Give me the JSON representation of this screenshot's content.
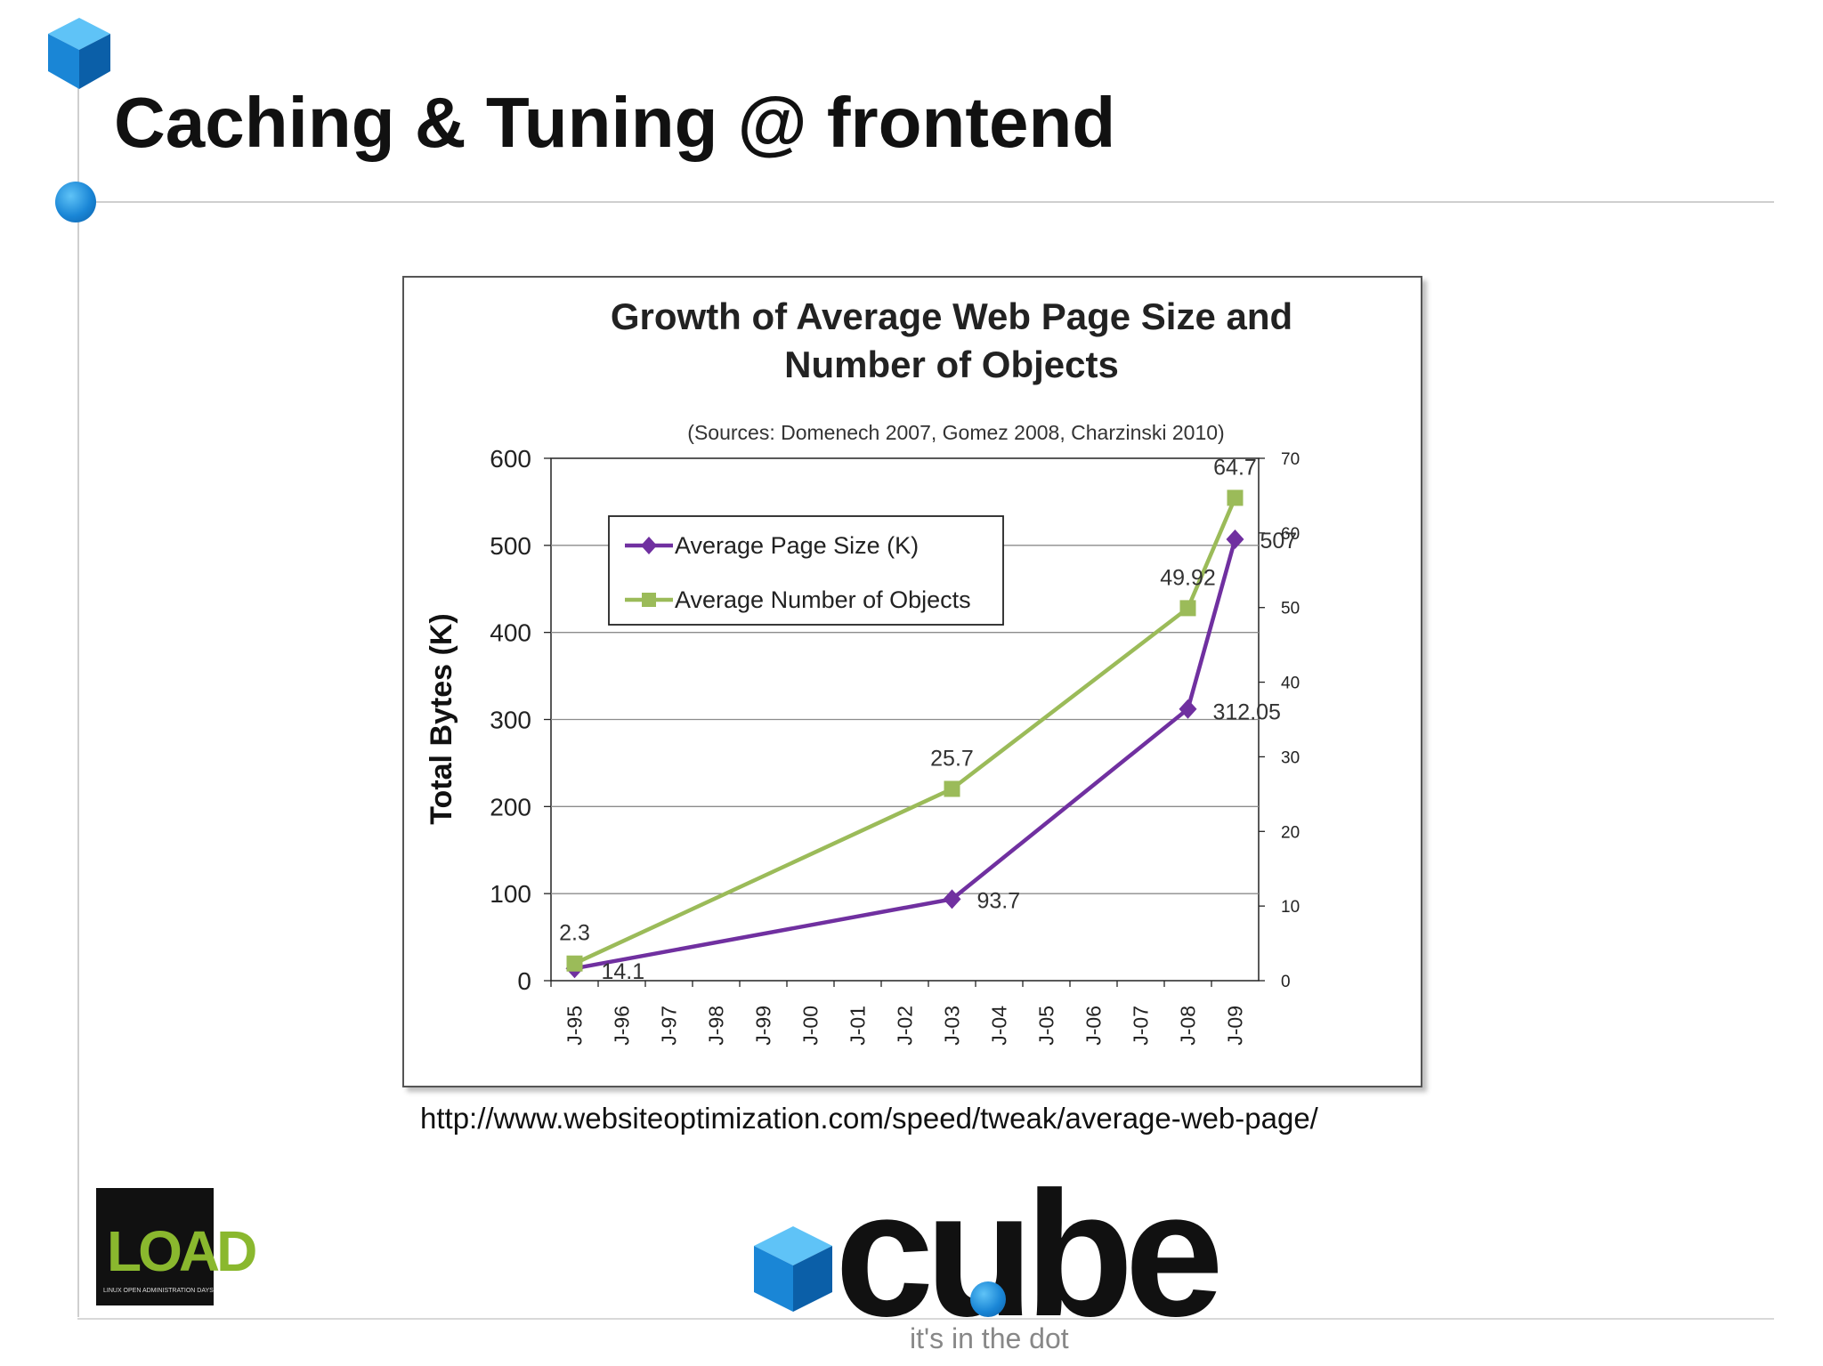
{
  "slide": {
    "title": "Caching & Tuning @ frontend",
    "source_url": "http://www.websiteoptimization.com/speed/tweak/average-web-page/",
    "footer_logo_text": "cube",
    "footer_tagline": "it's in the dot",
    "load_logo_text": "LOAD",
    "load_logo_subtext": "LINUX OPEN ADMINISTRATION DAYS"
  },
  "colors": {
    "accent_blue": "#1a86d6",
    "page_size_series": "#7030a0",
    "objects_series": "#9bbb59",
    "load_green": "#8ab82e"
  },
  "chart_data": {
    "type": "line",
    "title_line1": "Growth of Average Web Page Size and",
    "title_line2": "Number of Objects",
    "subtitle": "(Sources: Domenech 2007, Gomez 2008, Charzinski 2010)",
    "ylabel": "Total Bytes (K)",
    "ylim": [
      0,
      600
    ],
    "yticks": [
      "0",
      "100",
      "200",
      "300",
      "400",
      "500",
      "600"
    ],
    "y2lim": [
      0,
      70
    ],
    "y2ticks": [
      "0",
      "10",
      "20",
      "30",
      "40",
      "50",
      "60",
      "70"
    ],
    "categories": [
      "J-95",
      "J-96",
      "J-97",
      "J-98",
      "J-99",
      "J-00",
      "J-01",
      "J-02",
      "J-03",
      "J-04",
      "J-05",
      "J-06",
      "J-07",
      "J-08",
      "J-09"
    ],
    "legend_position": "top-left",
    "grid": true,
    "series": [
      {
        "name": "Average Page Size (K)",
        "axis": "left",
        "color": "#7030a0",
        "marker": "diamond",
        "points": [
          {
            "x": "J-95",
            "y": 14.1,
            "label": "14.1"
          },
          {
            "x": "J-03",
            "y": 93.7,
            "label": "93.7"
          },
          {
            "x": "J-08",
            "y": 312.05,
            "label": "312.05"
          },
          {
            "x": "J-09",
            "y": 507,
            "label": "507"
          }
        ]
      },
      {
        "name": "Average Number of Objects",
        "axis": "right",
        "color": "#9bbb59",
        "marker": "square",
        "points": [
          {
            "x": "J-95",
            "y": 2.3,
            "label": "2.3"
          },
          {
            "x": "J-03",
            "y": 25.7,
            "label": "25.7"
          },
          {
            "x": "J-08",
            "y": 49.92,
            "label": "49.92"
          },
          {
            "x": "J-09",
            "y": 64.7,
            "label": "64.7"
          }
        ]
      }
    ]
  }
}
